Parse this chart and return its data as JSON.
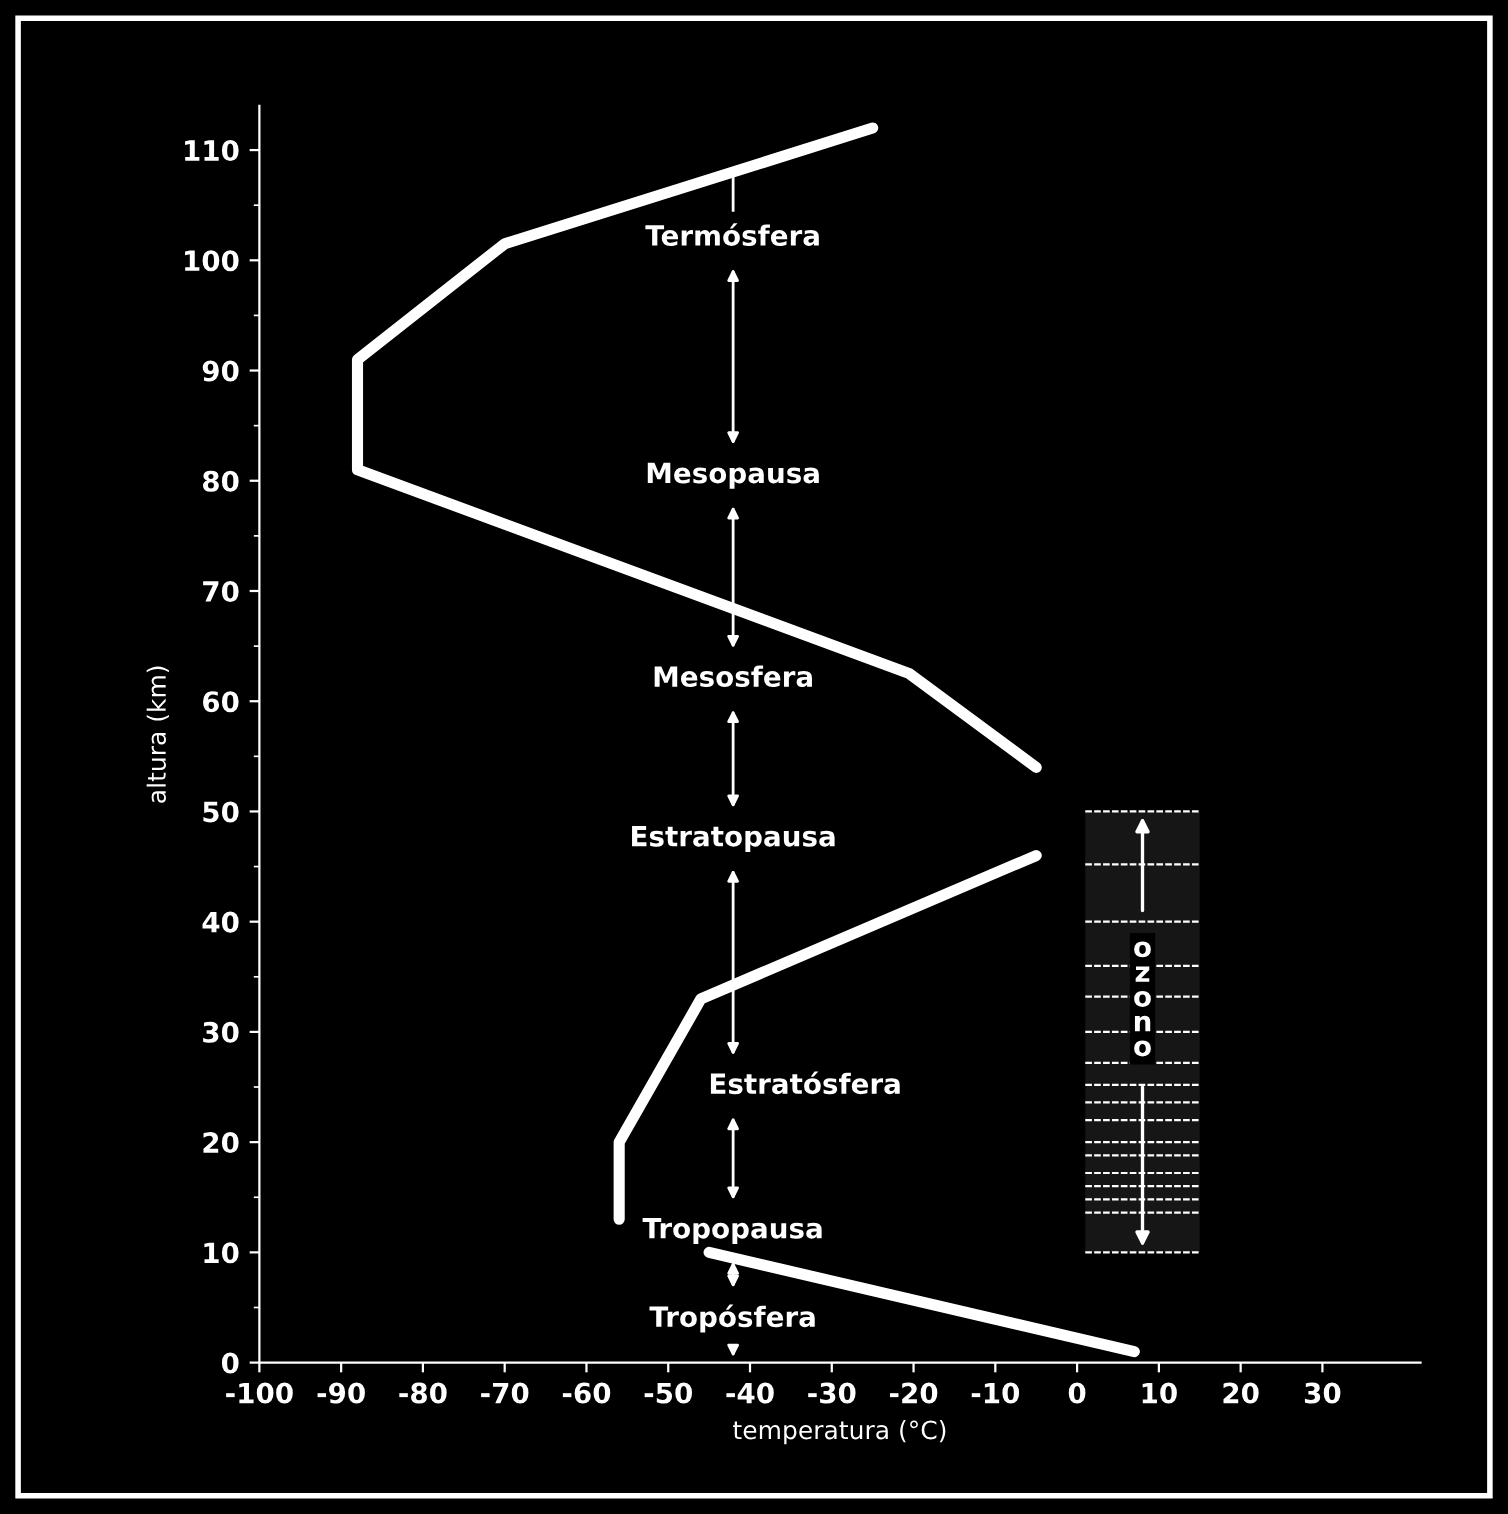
{
  "chart_data": {
    "type": "line",
    "xlabel": "temperatura (°C)",
    "ylabel": "altura (km)",
    "series": [
      {
        "color": "#ffffff",
        "x": [
          7,
          -45,
          null,
          -56,
          -56,
          -46,
          -5,
          null,
          -5,
          -20.5,
          -88,
          -88,
          -70,
          -25
        ],
        "values": [
          1,
          10,
          null,
          13,
          20,
          33,
          46,
          null,
          54,
          62.5,
          81,
          91,
          101.5,
          112
        ]
      }
    ],
    "xlim": [
      -100,
      42
    ],
    "xticks": [
      -100,
      -90,
      -80,
      -70,
      -60,
      -50,
      -40,
      -30,
      -20,
      -10,
      0,
      10,
      20,
      30
    ],
    "ylim": [
      0,
      114
    ],
    "yticks": [
      0,
      10,
      20,
      30,
      40,
      50,
      60,
      70,
      80,
      90,
      100,
      110
    ],
    "bands": [
      {
        "axis": "y",
        "from": 10,
        "to": 50,
        "label": "ozono"
      }
    ],
    "annotations": [
      "Termósfera",
      "Mesopausa",
      "Mesosfera",
      "Estratopausa",
      "Estratósfera",
      "Tropopausa",
      "Tropósfera"
    ],
    "grid": false,
    "marker": "none",
    "line_style": "solid"
  }
}
